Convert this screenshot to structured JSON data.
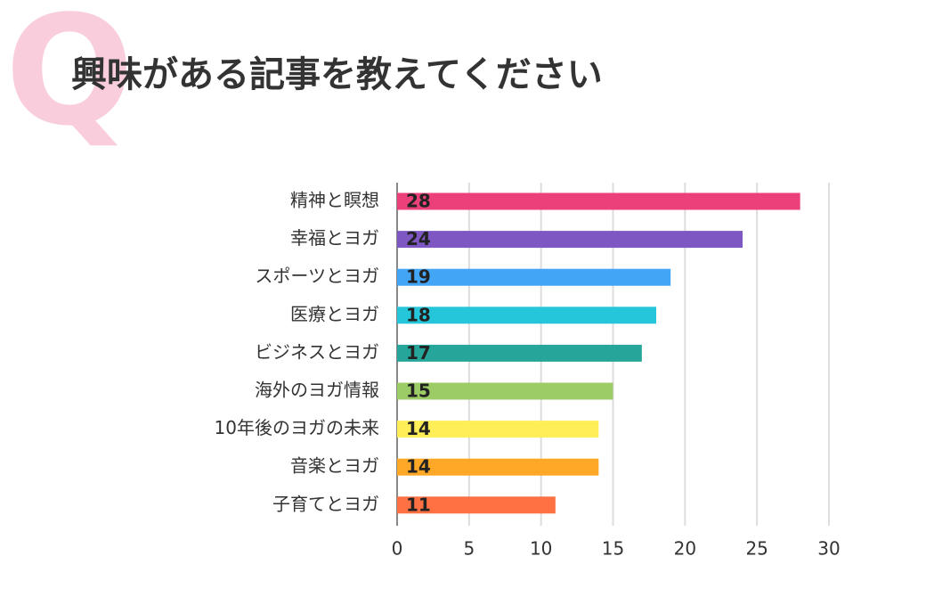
{
  "badge": "Q",
  "chart_data": {
    "type": "bar",
    "orientation": "horizontal",
    "title": "興味がある記事を教えてください",
    "categories": [
      "精神と瞑想",
      "幸福とヨガ",
      "スポーツとヨガ",
      "医療とヨガ",
      "ビジネスとヨガ",
      "海外のヨガ情報",
      "10年後のヨガの未来",
      "音楽とヨガ",
      "子育てとヨガ"
    ],
    "values": [
      28,
      24,
      19,
      18,
      17,
      15,
      14,
      14,
      11
    ],
    "colors": [
      "#ec407a",
      "#7e57c2",
      "#42a5f5",
      "#26c6da",
      "#26a69a",
      "#9ccc65",
      "#ffee58",
      "#ffa726",
      "#ff7043"
    ],
    "xlim": [
      0,
      30
    ],
    "xticks": [
      0,
      5,
      10,
      15,
      20,
      25,
      30
    ],
    "grid": true
  }
}
